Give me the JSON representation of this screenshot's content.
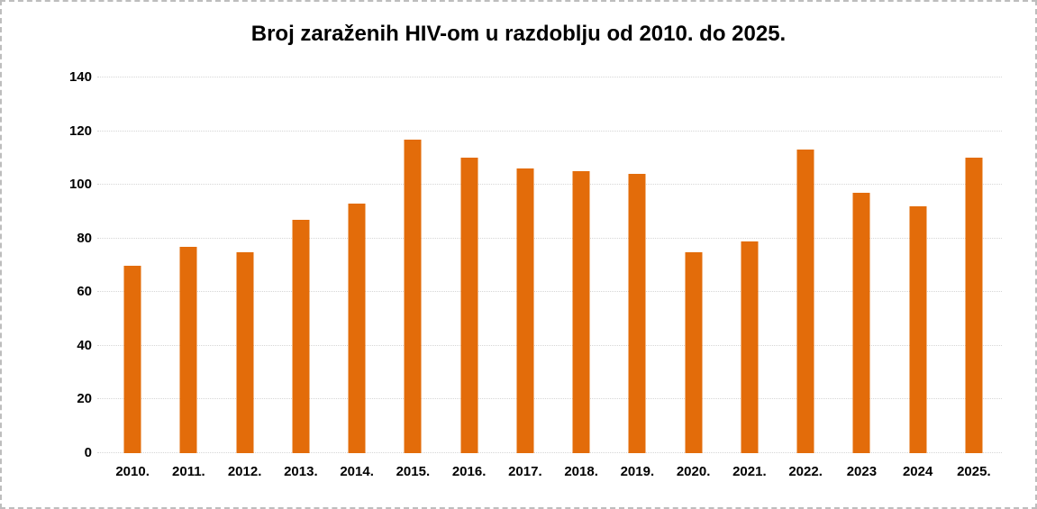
{
  "chart_data": {
    "type": "bar",
    "title": "Broj zaraženih HIV-om u razdoblju od 2010. do 2025.",
    "xlabel": "",
    "ylabel": "",
    "categories": [
      "2010.",
      "2011.",
      "2012.",
      "2013.",
      "2014.",
      "2015.",
      "2016.",
      "2017.",
      "2018.",
      "2019.",
      "2020.",
      "2021.",
      "2022.",
      "2023",
      "2024",
      "2025."
    ],
    "values": [
      70,
      77,
      75,
      87,
      93,
      117,
      110,
      106,
      105,
      104,
      75,
      79,
      113,
      97,
      92,
      110
    ],
    "ylim": [
      0,
      140
    ],
    "yticks": [
      0,
      20,
      40,
      60,
      80,
      100,
      120,
      140
    ],
    "grid": true,
    "legend": false,
    "bar_color": "#E36C0A",
    "gridline_color": "#D6D6D6",
    "title_color": "#000000",
    "tick_label_color": "#000000",
    "background_color": "#FFFFFF",
    "frame_border_color": "#BDBDBD"
  }
}
